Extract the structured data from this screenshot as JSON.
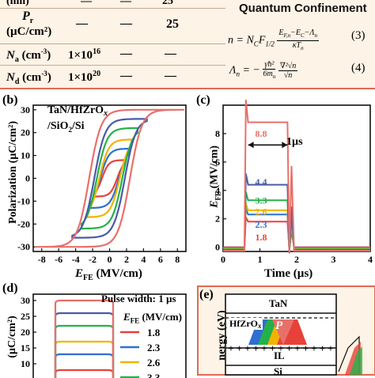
{
  "table": {
    "partial_row": [
      "(nm)",
      "—",
      "—",
      "25"
    ],
    "rows": [
      {
        "label": "Pr (µC/cm²)",
        "col1": "—",
        "col2": "—",
        "col3": "25"
      },
      {
        "label": "Na (cm⁻³)",
        "col1": "1×10¹⁶",
        "col2": "—",
        "col3": "—"
      },
      {
        "label": "Nd (cm⁻³)",
        "col1": "1×10²⁰",
        "col2": "—",
        "col3": "—"
      }
    ]
  },
  "quantum": {
    "title": "Quantum Confinement",
    "eq3": "n = N_C F_1/2 ((E_F,n − E_C − Λ_n)/(κT_n))",
    "eq3_num": "(3)",
    "eq4": "Λ_n = −(γħ²/6m_n)(∇²√n/√n)",
    "eq4_num": "(4)"
  },
  "panel_b": {
    "letter": "(b)",
    "annotation_line1": "TaN/HfZrOx",
    "annotation_line2": "/SiO2/Si",
    "ylabel": "Polarization (µC/cm²)",
    "xlabel": "E_FE (MV/cm)"
  },
  "panel_c": {
    "letter": "(c)",
    "pulse_width": "1µs",
    "ylabel": "E_FE (MV/cm)",
    "xlabel": "Time (µs)"
  },
  "panel_d": {
    "letter": "(d)",
    "title": "Pulse width: 1 µs",
    "legend_title": "E_FE (MV/cm)",
    "ylabel": "(µC/cm²)"
  },
  "panel_e": {
    "letter": "(e)",
    "layer_top": "TaN",
    "layer_mid": "HfZrOx",
    "layer_il": "IL",
    "layer_si": "Si",
    "p_label": "P",
    "ylabel": "nergy (eV)"
  },
  "colors": {
    "c1_8": "#e8413a",
    "c2_3": "#2e6fd1",
    "c2_6": "#f0b400",
    "c3_3": "#25b04a",
    "c4_4": "#4a5aa8",
    "c8_8": "#e8706a"
  },
  "chart_data": [
    {
      "type": "line",
      "title": "",
      "xlabel": "E_FE (MV/cm)",
      "ylabel": "Polarization (µC/cm²)",
      "xlim": [
        -9,
        9
      ],
      "ylim": [
        -32,
        32
      ],
      "xticks": [
        -8,
        -6,
        -4,
        -2,
        0,
        2,
        4,
        6,
        8
      ],
      "yticks": [
        -30,
        -20,
        -10,
        0,
        10,
        20,
        30
      ],
      "series": [
        {
          "name": "1.8",
          "color": "#e8413a",
          "emax": 1.8,
          "ps": 8,
          "ec": 0.9,
          "w": 0.8
        },
        {
          "name": "2.3",
          "color": "#2e6fd1",
          "emax": 2.3,
          "ps": 13,
          "ec": 1.1,
          "w": 1.0
        },
        {
          "name": "2.6",
          "color": "#f0b400",
          "emax": 2.6,
          "ps": 17,
          "ec": 1.2,
          "w": 1.1
        },
        {
          "name": "3.3",
          "color": "#25b04a",
          "emax": 3.3,
          "ps": 22,
          "ec": 1.5,
          "w": 1.2
        },
        {
          "name": "4.4",
          "color": "#4a5aa8",
          "emax": 4.4,
          "ps": 26,
          "ec": 1.8,
          "w": 1.3
        },
        {
          "name": "8.8",
          "color": "#e8706a",
          "emax": 8.8,
          "ps": 30,
          "ec": 2.4,
          "w": 1.4
        }
      ]
    },
    {
      "type": "line",
      "title": "",
      "xlabel": "Time (µs)",
      "ylabel": "E_FE (MV/cm)",
      "xlim": [
        0,
        4
      ],
      "ylim": [
        -0.3,
        10
      ],
      "xticks": [
        0,
        1,
        2,
        3,
        4
      ],
      "yticks": [
        0,
        2,
        4,
        6,
        8
      ],
      "series": [
        {
          "name": "1.8",
          "color": "#e8413a",
          "value": 1.8
        },
        {
          "name": "2.3",
          "color": "#2e6fd1",
          "value": 2.3
        },
        {
          "name": "2.6",
          "color": "#f0b400",
          "value": 2.6
        },
        {
          "name": "3.3",
          "color": "#25b04a",
          "value": 3.3
        },
        {
          "name": "4.4",
          "color": "#4a5aa8",
          "value": 4.4
        },
        {
          "name": "8.8",
          "color": "#e8706a",
          "value": 8.8
        }
      ]
    },
    {
      "type": "line",
      "title": "Pulse width: 1 µs",
      "xlabel": "",
      "ylabel": "(µC/cm²)",
      "ylim": [
        0,
        32
      ],
      "yticks": [
        0,
        5,
        10,
        15,
        20,
        25,
        30
      ],
      "series": [
        {
          "name": "1.8",
          "color": "#e8413a",
          "value": 8
        },
        {
          "name": "2.3",
          "color": "#2e6fd1",
          "value": 13
        },
        {
          "name": "2.6",
          "color": "#f0b400",
          "value": 17
        },
        {
          "name": "3.3",
          "color": "#25b04a",
          "value": 22
        },
        {
          "name": "4.4",
          "color": "#4a5aa8",
          "value": 26
        },
        {
          "name": "8.8",
          "color": "#e8706a",
          "value": 30
        }
      ]
    }
  ]
}
